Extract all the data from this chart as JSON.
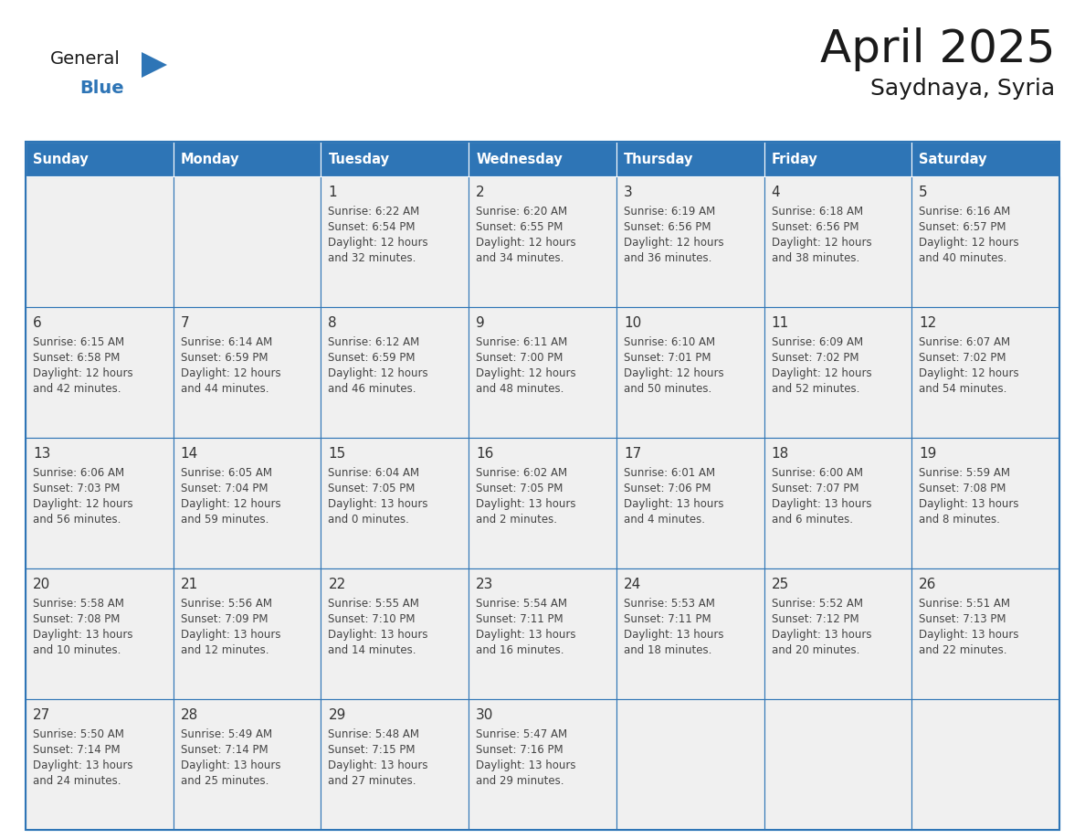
{
  "title": "April 2025",
  "subtitle": "Saydnaya, Syria",
  "days_of_week": [
    "Sunday",
    "Monday",
    "Tuesday",
    "Wednesday",
    "Thursday",
    "Friday",
    "Saturday"
  ],
  "header_bg": "#2E75B6",
  "header_text": "#FFFFFF",
  "cell_bg": "#F0F0F0",
  "border_color": "#2E75B6",
  "text_color": "#444444",
  "day_num_color": "#333333",
  "title_color": "#1a1a1a",
  "logo_general_color": "#1a1a1a",
  "logo_blue_color": "#2E75B6",
  "logo_triangle_color": "#2E75B6",
  "weeks": [
    [
      {
        "date": "",
        "sunrise": "",
        "sunset": "",
        "daylight_h": "",
        "daylight_m": ""
      },
      {
        "date": "",
        "sunrise": "",
        "sunset": "",
        "daylight_h": "",
        "daylight_m": ""
      },
      {
        "date": "1",
        "sunrise": "6:22 AM",
        "sunset": "6:54 PM",
        "daylight_h": "12 hours",
        "daylight_m": "and 32 minutes."
      },
      {
        "date": "2",
        "sunrise": "6:20 AM",
        "sunset": "6:55 PM",
        "daylight_h": "12 hours",
        "daylight_m": "and 34 minutes."
      },
      {
        "date": "3",
        "sunrise": "6:19 AM",
        "sunset": "6:56 PM",
        "daylight_h": "12 hours",
        "daylight_m": "and 36 minutes."
      },
      {
        "date": "4",
        "sunrise": "6:18 AM",
        "sunset": "6:56 PM",
        "daylight_h": "12 hours",
        "daylight_m": "and 38 minutes."
      },
      {
        "date": "5",
        "sunrise": "6:16 AM",
        "sunset": "6:57 PM",
        "daylight_h": "12 hours",
        "daylight_m": "and 40 minutes."
      }
    ],
    [
      {
        "date": "6",
        "sunrise": "6:15 AM",
        "sunset": "6:58 PM",
        "daylight_h": "12 hours",
        "daylight_m": "and 42 minutes."
      },
      {
        "date": "7",
        "sunrise": "6:14 AM",
        "sunset": "6:59 PM",
        "daylight_h": "12 hours",
        "daylight_m": "and 44 minutes."
      },
      {
        "date": "8",
        "sunrise": "6:12 AM",
        "sunset": "6:59 PM",
        "daylight_h": "12 hours",
        "daylight_m": "and 46 minutes."
      },
      {
        "date": "9",
        "sunrise": "6:11 AM",
        "sunset": "7:00 PM",
        "daylight_h": "12 hours",
        "daylight_m": "and 48 minutes."
      },
      {
        "date": "10",
        "sunrise": "6:10 AM",
        "sunset": "7:01 PM",
        "daylight_h": "12 hours",
        "daylight_m": "and 50 minutes."
      },
      {
        "date": "11",
        "sunrise": "6:09 AM",
        "sunset": "7:02 PM",
        "daylight_h": "12 hours",
        "daylight_m": "and 52 minutes."
      },
      {
        "date": "12",
        "sunrise": "6:07 AM",
        "sunset": "7:02 PM",
        "daylight_h": "12 hours",
        "daylight_m": "and 54 minutes."
      }
    ],
    [
      {
        "date": "13",
        "sunrise": "6:06 AM",
        "sunset": "7:03 PM",
        "daylight_h": "12 hours",
        "daylight_m": "and 56 minutes."
      },
      {
        "date": "14",
        "sunrise": "6:05 AM",
        "sunset": "7:04 PM",
        "daylight_h": "12 hours",
        "daylight_m": "and 59 minutes."
      },
      {
        "date": "15",
        "sunrise": "6:04 AM",
        "sunset": "7:05 PM",
        "daylight_h": "13 hours",
        "daylight_m": "and 0 minutes."
      },
      {
        "date": "16",
        "sunrise": "6:02 AM",
        "sunset": "7:05 PM",
        "daylight_h": "13 hours",
        "daylight_m": "and 2 minutes."
      },
      {
        "date": "17",
        "sunrise": "6:01 AM",
        "sunset": "7:06 PM",
        "daylight_h": "13 hours",
        "daylight_m": "and 4 minutes."
      },
      {
        "date": "18",
        "sunrise": "6:00 AM",
        "sunset": "7:07 PM",
        "daylight_h": "13 hours",
        "daylight_m": "and 6 minutes."
      },
      {
        "date": "19",
        "sunrise": "5:59 AM",
        "sunset": "7:08 PM",
        "daylight_h": "13 hours",
        "daylight_m": "and 8 minutes."
      }
    ],
    [
      {
        "date": "20",
        "sunrise": "5:58 AM",
        "sunset": "7:08 PM",
        "daylight_h": "13 hours",
        "daylight_m": "and 10 minutes."
      },
      {
        "date": "21",
        "sunrise": "5:56 AM",
        "sunset": "7:09 PM",
        "daylight_h": "13 hours",
        "daylight_m": "and 12 minutes."
      },
      {
        "date": "22",
        "sunrise": "5:55 AM",
        "sunset": "7:10 PM",
        "daylight_h": "13 hours",
        "daylight_m": "and 14 minutes."
      },
      {
        "date": "23",
        "sunrise": "5:54 AM",
        "sunset": "7:11 PM",
        "daylight_h": "13 hours",
        "daylight_m": "and 16 minutes."
      },
      {
        "date": "24",
        "sunrise": "5:53 AM",
        "sunset": "7:11 PM",
        "daylight_h": "13 hours",
        "daylight_m": "and 18 minutes."
      },
      {
        "date": "25",
        "sunrise": "5:52 AM",
        "sunset": "7:12 PM",
        "daylight_h": "13 hours",
        "daylight_m": "and 20 minutes."
      },
      {
        "date": "26",
        "sunrise": "5:51 AM",
        "sunset": "7:13 PM",
        "daylight_h": "13 hours",
        "daylight_m": "and 22 minutes."
      }
    ],
    [
      {
        "date": "27",
        "sunrise": "5:50 AM",
        "sunset": "7:14 PM",
        "daylight_h": "13 hours",
        "daylight_m": "and 24 minutes."
      },
      {
        "date": "28",
        "sunrise": "5:49 AM",
        "sunset": "7:14 PM",
        "daylight_h": "13 hours",
        "daylight_m": "and 25 minutes."
      },
      {
        "date": "29",
        "sunrise": "5:48 AM",
        "sunset": "7:15 PM",
        "daylight_h": "13 hours",
        "daylight_m": "and 27 minutes."
      },
      {
        "date": "30",
        "sunrise": "5:47 AM",
        "sunset": "7:16 PM",
        "daylight_h": "13 hours",
        "daylight_m": "and 29 minutes."
      },
      {
        "date": "",
        "sunrise": "",
        "sunset": "",
        "daylight_h": "",
        "daylight_m": ""
      },
      {
        "date": "",
        "sunrise": "",
        "sunset": "",
        "daylight_h": "",
        "daylight_m": ""
      },
      {
        "date": "",
        "sunrise": "",
        "sunset": "",
        "daylight_h": "",
        "daylight_m": ""
      }
    ]
  ]
}
